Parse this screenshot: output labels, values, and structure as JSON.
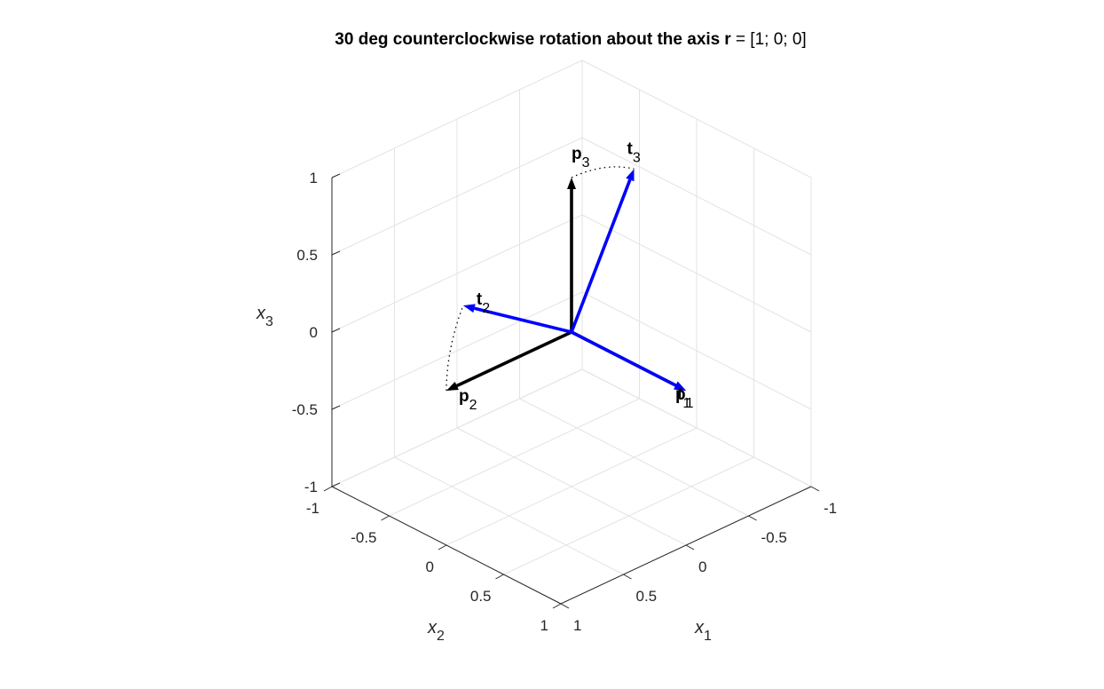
{
  "chart_data": {
    "type": "3d-vectors",
    "title": {
      "prefix": "30 deg counterclockwise rotation about the axis",
      "bold_symbol": "r",
      "suffix": " = [1; 0; 0]"
    },
    "view": "isometric",
    "grid": true,
    "axes": {
      "x1": {
        "label": "x",
        "sub": "1",
        "lim": [
          -1,
          1
        ],
        "ticks": [
          "-1",
          "-0.5",
          "0",
          "0.5",
          "1"
        ]
      },
      "x2": {
        "label": "x",
        "sub": "2",
        "lim": [
          -1,
          1
        ],
        "ticks": [
          "-1",
          "-0.5",
          "0",
          "0.5",
          "1"
        ]
      },
      "x3": {
        "label": "x",
        "sub": "3",
        "lim": [
          -1,
          1
        ],
        "ticks": [
          "-1",
          "-0.5",
          "0",
          "0.5",
          "1"
        ]
      }
    },
    "rotation_deg": 30,
    "axis_r": [
      1,
      0,
      0
    ],
    "original_vectors": {
      "color": "#000000",
      "vectors": [
        {
          "name": "p",
          "sub": "1",
          "vec": [
            1,
            0,
            0
          ]
        },
        {
          "name": "p",
          "sub": "2",
          "vec": [
            0,
            1,
            0
          ]
        },
        {
          "name": "p",
          "sub": "3",
          "vec": [
            0,
            0,
            1
          ]
        }
      ]
    },
    "rotated_vectors": {
      "color": "#0000ff",
      "vectors": [
        {
          "name": "t",
          "sub": "1",
          "vec": [
            1,
            0,
            0
          ]
        },
        {
          "name": "t",
          "sub": "2",
          "vec": [
            0,
            0.866,
            0.5
          ]
        },
        {
          "name": "t",
          "sub": "3",
          "vec": [
            0,
            -0.5,
            0.866
          ]
        }
      ]
    },
    "arcs": [
      {
        "from": "p2",
        "to": "t2"
      },
      {
        "from": "p3",
        "to": "t3"
      }
    ]
  }
}
